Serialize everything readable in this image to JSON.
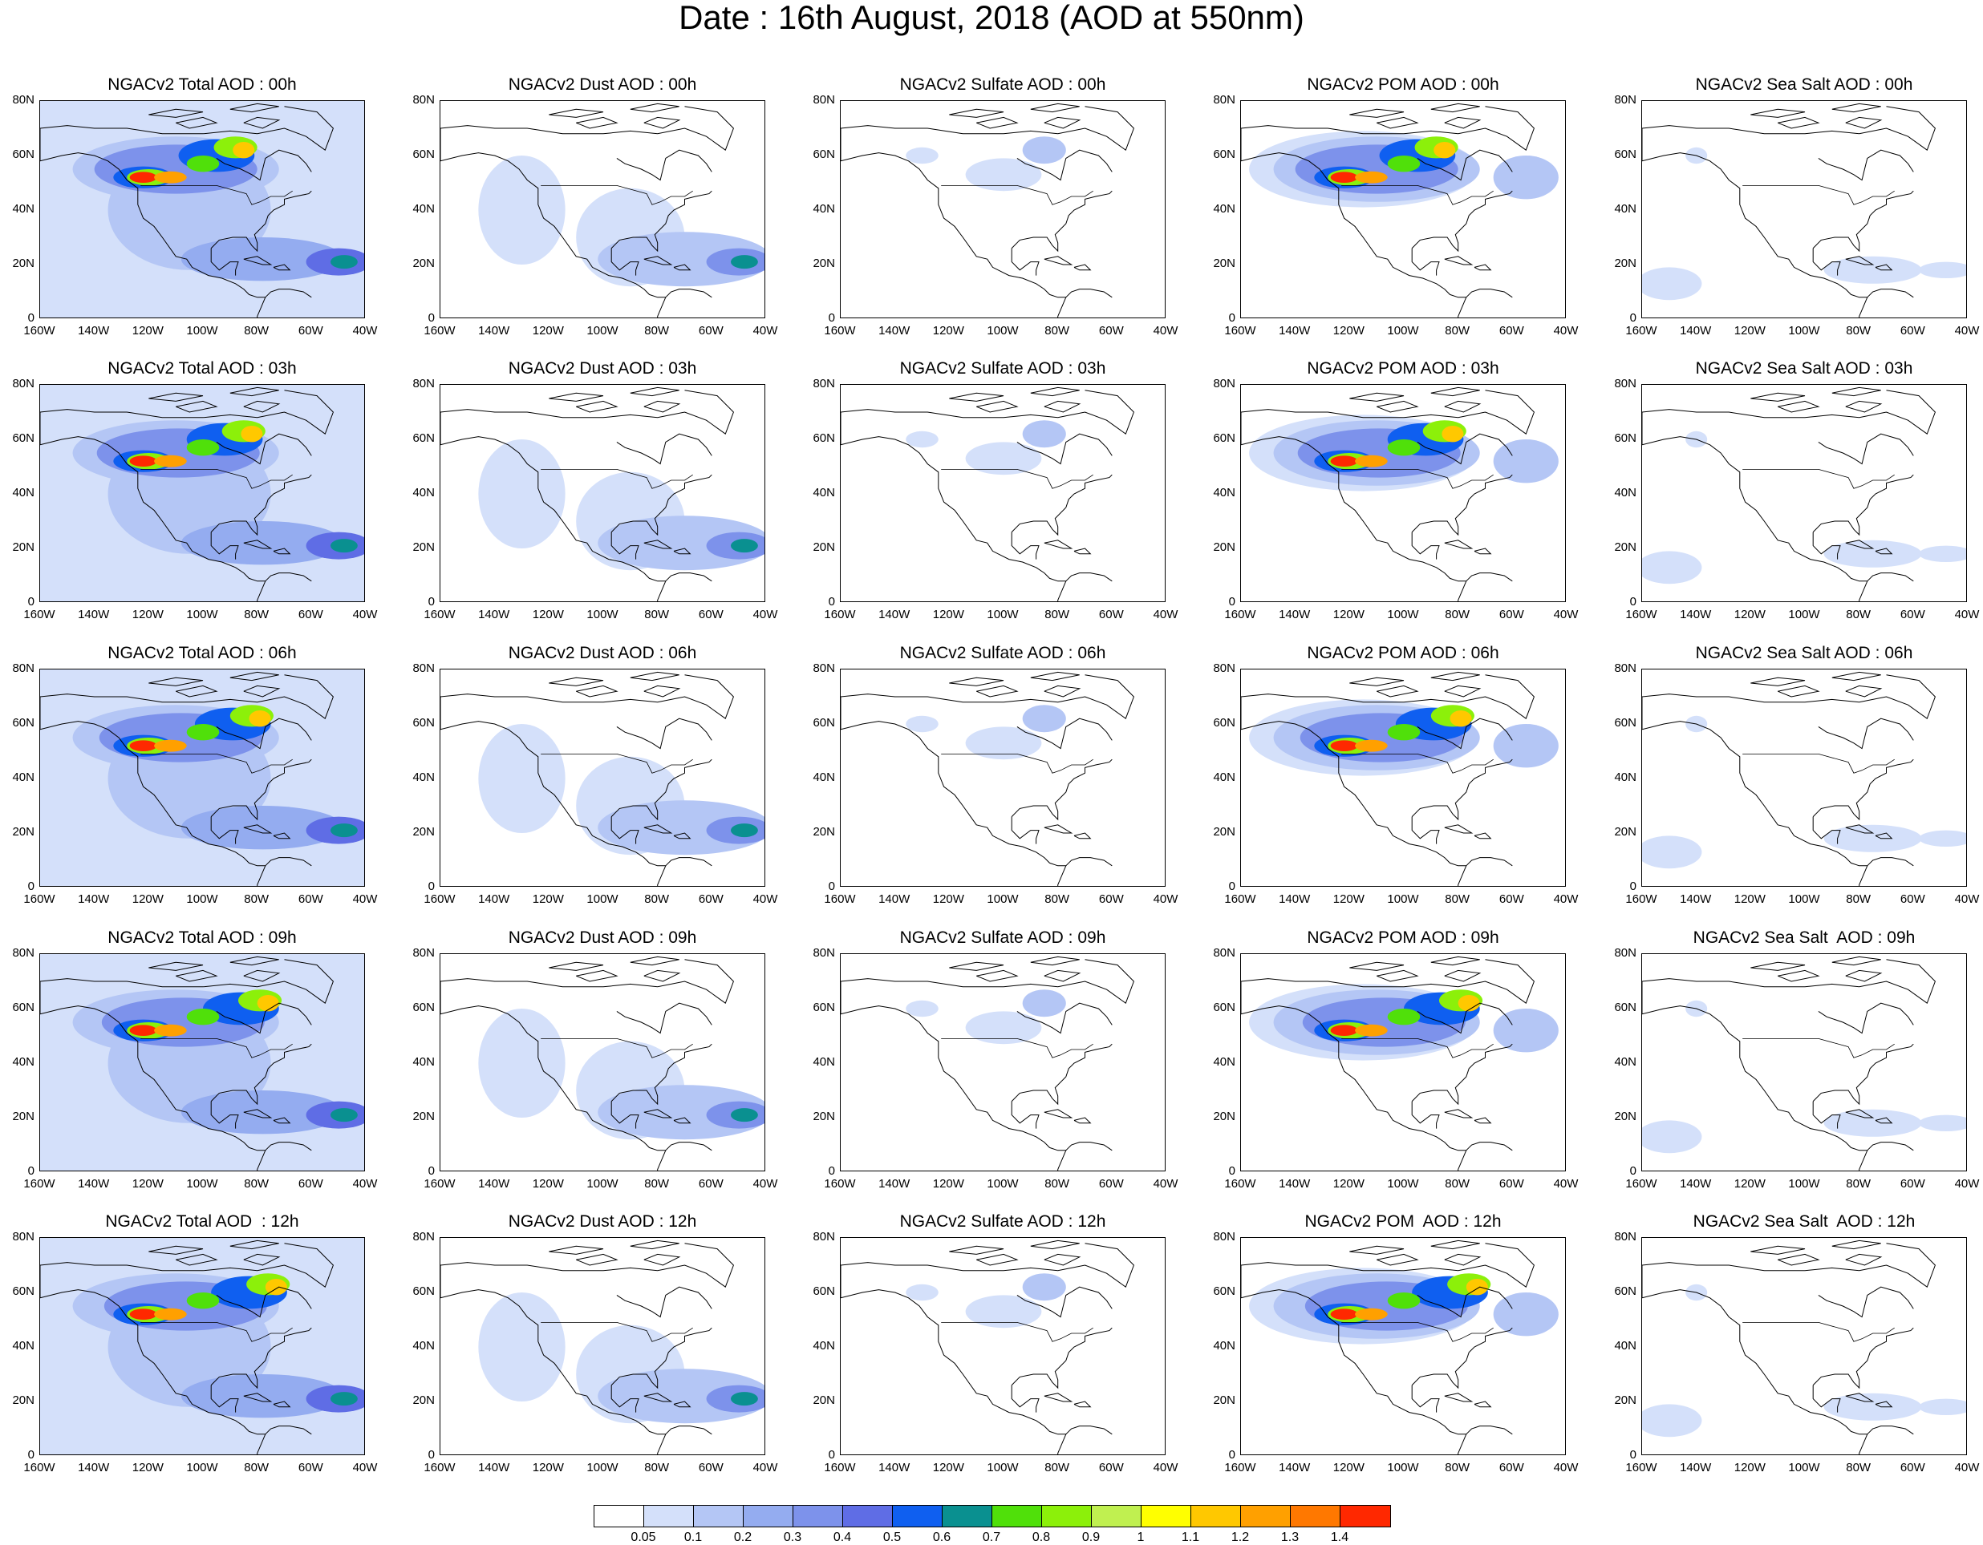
{
  "title": "Date : 16th August, 2018 (AOD at 550nm)",
  "panels": [
    [
      "NGACv2 Total AOD : 00h",
      "NGACv2 Dust AOD : 00h",
      "NGACv2 Sulfate AOD : 00h",
      "NGACv2 POM AOD : 00h",
      "NGACv2 Sea Salt AOD : 00h"
    ],
    [
      "NGACv2 Total AOD : 03h",
      "NGACv2 Dust AOD : 03h",
      "NGACv2 Sulfate AOD : 03h",
      "NGACv2 POM AOD : 03h",
      "NGACv2 Sea Salt AOD : 03h"
    ],
    [
      "NGACv2 Total AOD : 06h",
      "NGACv2 Dust AOD : 06h",
      "NGACv2 Sulfate AOD : 06h",
      "NGACv2 POM AOD : 06h",
      "NGACv2 Sea Salt AOD : 06h"
    ],
    [
      "NGACv2 Total AOD : 09h",
      "NGACv2 Dust AOD : 09h",
      "NGACv2 Sulfate AOD : 09h",
      "NGACv2 POM AOD : 09h",
      "NGACv2 Sea Salt  AOD : 09h"
    ],
    [
      "NGACv2 Total AOD  : 12h",
      "NGACv2 Dust AOD : 12h",
      "NGACv2 Sulfate AOD : 12h",
      "NGACv2 POM  AOD : 12h",
      "NGACv2 Sea Salt  AOD : 12h"
    ]
  ],
  "lat_ticks": [
    "80N",
    "60N",
    "40N",
    "20N",
    "0"
  ],
  "lon_ticks": [
    "160W",
    "140W",
    "120W",
    "100W",
    "80W",
    "60W",
    "40W"
  ],
  "colorbar": {
    "colors": [
      "#ffffff",
      "#d4e0fa",
      "#b4c6f5",
      "#94acf0",
      "#7d92eb",
      "#5f6de5",
      "#0f5ff0",
      "#0a9090",
      "#50e00a",
      "#8cf00a",
      "#c0f050",
      "#ffff00",
      "#ffc800",
      "#ffa000",
      "#ff7800",
      "#ff2800"
    ],
    "labels": [
      "0.05",
      "0.1",
      "0.2",
      "0.3",
      "0.4",
      "0.5",
      "0.6",
      "0.7",
      "0.8",
      "0.9",
      "1",
      "1.1",
      "1.2",
      "1.3",
      "1.4"
    ]
  },
  "species": [
    "Total",
    "Dust",
    "Sulfate",
    "POM",
    "Sea Salt"
  ]
}
